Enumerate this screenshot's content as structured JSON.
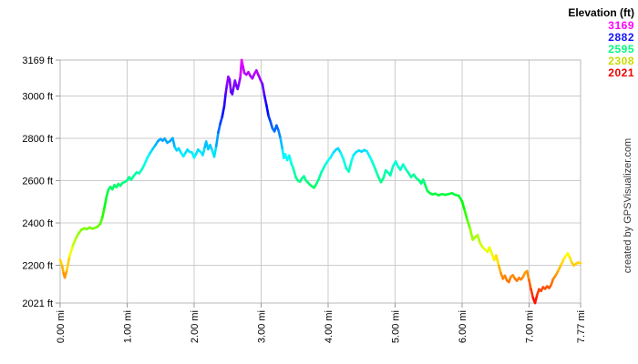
{
  "credit": "created by GPSVisualizer.com",
  "legend": {
    "title": "Elevation (ft)",
    "entries": [
      {
        "label": "3169",
        "color": "#ff00ff"
      },
      {
        "label": "2882",
        "color": "#1515ff"
      },
      {
        "label": "2595",
        "color": "#00ff7d"
      },
      {
        "label": "2308",
        "color": "#cbdb00"
      },
      {
        "label": "2021",
        "color": "#ee0000"
      }
    ]
  },
  "chart_data": {
    "type": "line",
    "title": "",
    "xlabel": "",
    "ylabel": "",
    "x_unit": "mi",
    "y_unit": "ft",
    "xlim": [
      0,
      7.77
    ],
    "ylim": [
      2021,
      3169
    ],
    "grid": true,
    "legend_position": "top-right",
    "color_scale": {
      "style": "rainbow-by-elevation",
      "min_elev": 2021,
      "max_elev": 3169,
      "min_hue": 0,
      "max_hue": 300
    },
    "x_ticks": [
      {
        "value": 0.0,
        "label": "0.00 mi"
      },
      {
        "value": 1.0,
        "label": "1.00 mi"
      },
      {
        "value": 2.0,
        "label": "2.00 mi"
      },
      {
        "value": 3.0,
        "label": "3.00 mi"
      },
      {
        "value": 4.0,
        "label": "4.00 mi"
      },
      {
        "value": 5.0,
        "label": "5.00 mi"
      },
      {
        "value": 6.0,
        "label": "6.00 mi"
      },
      {
        "value": 7.0,
        "label": "7.00 mi"
      },
      {
        "value": 7.77,
        "label": "7.77 mi"
      }
    ],
    "y_ticks": [
      {
        "value": 3169,
        "label": "3169 ft"
      },
      {
        "value": 3000,
        "label": "3000 ft"
      },
      {
        "value": 2800,
        "label": "2800 ft"
      },
      {
        "value": 2600,
        "label": "2600 ft"
      },
      {
        "value": 2400,
        "label": "2400 ft"
      },
      {
        "value": 2200,
        "label": "2200 ft"
      },
      {
        "value": 2021,
        "label": "2021 ft"
      }
    ],
    "series": [
      {
        "name": "Elevation (ft)",
        "points": [
          [
            0,
            2225
          ],
          [
            0.03,
            2196
          ],
          [
            0.05,
            2162
          ],
          [
            0.07,
            2141
          ],
          [
            0.1,
            2176
          ],
          [
            0.14,
            2242
          ],
          [
            0.19,
            2292
          ],
          [
            0.24,
            2330
          ],
          [
            0.28,
            2352
          ],
          [
            0.32,
            2368
          ],
          [
            0.36,
            2374
          ],
          [
            0.4,
            2370
          ],
          [
            0.44,
            2378
          ],
          [
            0.48,
            2372
          ],
          [
            0.52,
            2376
          ],
          [
            0.56,
            2382
          ],
          [
            0.6,
            2396
          ],
          [
            0.63,
            2425
          ],
          [
            0.66,
            2470
          ],
          [
            0.69,
            2520
          ],
          [
            0.72,
            2556
          ],
          [
            0.75,
            2570
          ],
          [
            0.78,
            2558
          ],
          [
            0.81,
            2578
          ],
          [
            0.84,
            2568
          ],
          [
            0.87,
            2584
          ],
          [
            0.9,
            2575
          ],
          [
            0.93,
            2588
          ],
          [
            0.97,
            2594
          ],
          [
            1,
            2600
          ],
          [
            1.03,
            2616
          ],
          [
            1.06,
            2604
          ],
          [
            1.1,
            2622
          ],
          [
            1.14,
            2638
          ],
          [
            1.18,
            2634
          ],
          [
            1.22,
            2652
          ],
          [
            1.26,
            2676
          ],
          [
            1.3,
            2706
          ],
          [
            1.34,
            2728
          ],
          [
            1.38,
            2748
          ],
          [
            1.42,
            2766
          ],
          [
            1.46,
            2786
          ],
          [
            1.5,
            2796
          ],
          [
            1.53,
            2788
          ],
          [
            1.56,
            2798
          ],
          [
            1.6,
            2778
          ],
          [
            1.64,
            2786
          ],
          [
            1.68,
            2800
          ],
          [
            1.71,
            2758
          ],
          [
            1.74,
            2742
          ],
          [
            1.77,
            2752
          ],
          [
            1.8,
            2734
          ],
          [
            1.84,
            2714
          ],
          [
            1.87,
            2730
          ],
          [
            1.9,
            2746
          ],
          [
            1.93,
            2736
          ],
          [
            1.97,
            2732
          ],
          [
            2,
            2708
          ],
          [
            2.03,
            2726
          ],
          [
            2.06,
            2746
          ],
          [
            2.1,
            2734
          ],
          [
            2.13,
            2720
          ],
          [
            2.16,
            2758
          ],
          [
            2.18,
            2784
          ],
          [
            2.21,
            2748
          ],
          [
            2.24,
            2768
          ],
          [
            2.27,
            2742
          ],
          [
            2.3,
            2712
          ],
          [
            2.33,
            2762
          ],
          [
            2.36,
            2826
          ],
          [
            2.39,
            2868
          ],
          [
            2.42,
            2902
          ],
          [
            2.45,
            2952
          ],
          [
            2.47,
            3008
          ],
          [
            2.49,
            3052
          ],
          [
            2.51,
            3090
          ],
          [
            2.53,
            3078
          ],
          [
            2.55,
            3018
          ],
          [
            2.57,
            3008
          ],
          [
            2.59,
            3040
          ],
          [
            2.61,
            3072
          ],
          [
            2.63,
            3048
          ],
          [
            2.65,
            3032
          ],
          [
            2.67,
            3058
          ],
          [
            2.69,
            3088
          ],
          [
            2.71,
            3169
          ],
          [
            2.73,
            3138
          ],
          [
            2.75,
            3108
          ],
          [
            2.78,
            3100
          ],
          [
            2.81,
            3112
          ],
          [
            2.84,
            3094
          ],
          [
            2.87,
            3082
          ],
          [
            2.9,
            3104
          ],
          [
            2.93,
            3120
          ],
          [
            2.96,
            3098
          ],
          [
            2.99,
            3076
          ],
          [
            3.02,
            3056
          ],
          [
            3.05,
            3002
          ],
          [
            3.08,
            2956
          ],
          [
            3.11,
            2906
          ],
          [
            3.14,
            2878
          ],
          [
            3.17,
            2846
          ],
          [
            3.2,
            2832
          ],
          [
            3.23,
            2860
          ],
          [
            3.26,
            2836
          ],
          [
            3.29,
            2798
          ],
          [
            3.32,
            2744
          ],
          [
            3.34,
            2706
          ],
          [
            3.36,
            2724
          ],
          [
            3.39,
            2696
          ],
          [
            3.42,
            2718
          ],
          [
            3.45,
            2682
          ],
          [
            3.48,
            2658
          ],
          [
            3.52,
            2614
          ],
          [
            3.55,
            2600
          ],
          [
            3.58,
            2594
          ],
          [
            3.61,
            2610
          ],
          [
            3.64,
            2620
          ],
          [
            3.67,
            2600
          ],
          [
            3.7,
            2590
          ],
          [
            3.73,
            2580
          ],
          [
            3.76,
            2572
          ],
          [
            3.79,
            2566
          ],
          [
            3.82,
            2580
          ],
          [
            3.86,
            2606
          ],
          [
            3.9,
            2638
          ],
          [
            3.95,
            2670
          ],
          [
            4,
            2694
          ],
          [
            4.04,
            2710
          ],
          [
            4.08,
            2732
          ],
          [
            4.12,
            2746
          ],
          [
            4.15,
            2752
          ],
          [
            4.19,
            2730
          ],
          [
            4.23,
            2700
          ],
          [
            4.27,
            2658
          ],
          [
            4.31,
            2642
          ],
          [
            4.35,
            2692
          ],
          [
            4.38,
            2720
          ],
          [
            4.42,
            2734
          ],
          [
            4.46,
            2742
          ],
          [
            4.5,
            2736
          ],
          [
            4.54,
            2744
          ],
          [
            4.58,
            2738
          ],
          [
            4.62,
            2714
          ],
          [
            4.66,
            2688
          ],
          [
            4.7,
            2658
          ],
          [
            4.75,
            2618
          ],
          [
            4.79,
            2592
          ],
          [
            4.83,
            2614
          ],
          [
            4.86,
            2648
          ],
          [
            4.9,
            2636
          ],
          [
            4.93,
            2624
          ],
          [
            4.97,
            2668
          ],
          [
            5.01,
            2690
          ],
          [
            5.05,
            2664
          ],
          [
            5.08,
            2650
          ],
          [
            5.12,
            2676
          ],
          [
            5.16,
            2654
          ],
          [
            5.2,
            2636
          ],
          [
            5.24,
            2616
          ],
          [
            5.28,
            2628
          ],
          [
            5.32,
            2610
          ],
          [
            5.36,
            2600
          ],
          [
            5.39,
            2586
          ],
          [
            5.42,
            2604
          ],
          [
            5.45,
            2580
          ],
          [
            5.48,
            2552
          ],
          [
            5.52,
            2540
          ],
          [
            5.56,
            2534
          ],
          [
            5.6,
            2538
          ],
          [
            5.65,
            2530
          ],
          [
            5.7,
            2536
          ],
          [
            5.75,
            2532
          ],
          [
            5.8,
            2536
          ],
          [
            5.85,
            2540
          ],
          [
            5.9,
            2532
          ],
          [
            5.95,
            2528
          ],
          [
            6,
            2502
          ],
          [
            6.04,
            2458
          ],
          [
            6.08,
            2412
          ],
          [
            6.12,
            2372
          ],
          [
            6.16,
            2320
          ],
          [
            6.19,
            2330
          ],
          [
            6.23,
            2342
          ],
          [
            6.27,
            2304
          ],
          [
            6.31,
            2284
          ],
          [
            6.35,
            2272
          ],
          [
            6.38,
            2262
          ],
          [
            6.41,
            2284
          ],
          [
            6.45,
            2252
          ],
          [
            6.48,
            2224
          ],
          [
            6.51,
            2246
          ],
          [
            6.55,
            2196
          ],
          [
            6.58,
            2162
          ],
          [
            6.61,
            2136
          ],
          [
            6.64,
            2150
          ],
          [
            6.67,
            2128
          ],
          [
            6.7,
            2120
          ],
          [
            6.73,
            2146
          ],
          [
            6.76,
            2152
          ],
          [
            6.79,
            2136
          ],
          [
            6.82,
            2126
          ],
          [
            6.85,
            2140
          ],
          [
            6.88,
            2132
          ],
          [
            6.91,
            2144
          ],
          [
            6.94,
            2164
          ],
          [
            6.97,
            2172
          ],
          [
            7,
            2130
          ],
          [
            7.03,
            2086
          ],
          [
            7.06,
            2046
          ],
          [
            7.09,
            2021
          ],
          [
            7.12,
            2058
          ],
          [
            7.15,
            2086
          ],
          [
            7.18,
            2078
          ],
          [
            7.21,
            2096
          ],
          [
            7.24,
            2088
          ],
          [
            7.27,
            2100
          ],
          [
            7.3,
            2092
          ],
          [
            7.33,
            2106
          ],
          [
            7.36,
            2134
          ],
          [
            7.4,
            2152
          ],
          [
            7.44,
            2176
          ],
          [
            7.48,
            2202
          ],
          [
            7.52,
            2228
          ],
          [
            7.55,
            2244
          ],
          [
            7.58,
            2256
          ],
          [
            7.61,
            2236
          ],
          [
            7.64,
            2212
          ],
          [
            7.67,
            2198
          ],
          [
            7.7,
            2206
          ],
          [
            7.73,
            2212
          ],
          [
            7.77,
            2210
          ]
        ]
      }
    ]
  }
}
